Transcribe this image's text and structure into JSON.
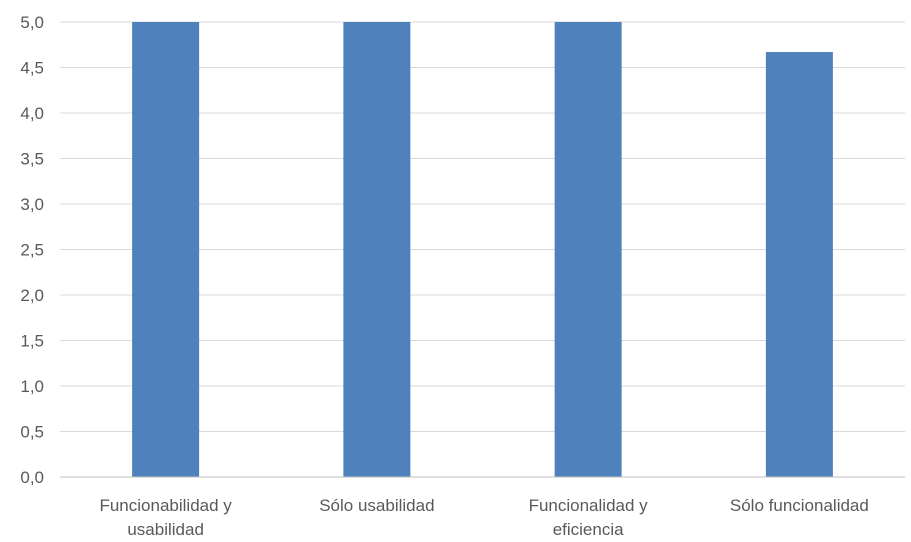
{
  "chart_data": {
    "type": "bar",
    "categories": [
      [
        "Funcionabilidad y",
        "usabilidad"
      ],
      [
        "Sólo usabilidad"
      ],
      [
        "Funcionalidad y",
        "eficiencia"
      ],
      [
        "Sólo funcionalidad"
      ]
    ],
    "values": [
      5.0,
      5.0,
      5.0,
      4.67
    ],
    "ylim": [
      0,
      5
    ],
    "ytick_step": 0.5,
    "ytick_labels": [
      "0,0",
      "0,5",
      "1,0",
      "1,5",
      "2,0",
      "2,5",
      "3,0",
      "3,5",
      "4,0",
      "4,5",
      "5,0"
    ],
    "grid": true,
    "bar_color": "#4f81bd",
    "grid_color": "#d9d9d9",
    "title": "",
    "xlabel": "",
    "ylabel": ""
  }
}
